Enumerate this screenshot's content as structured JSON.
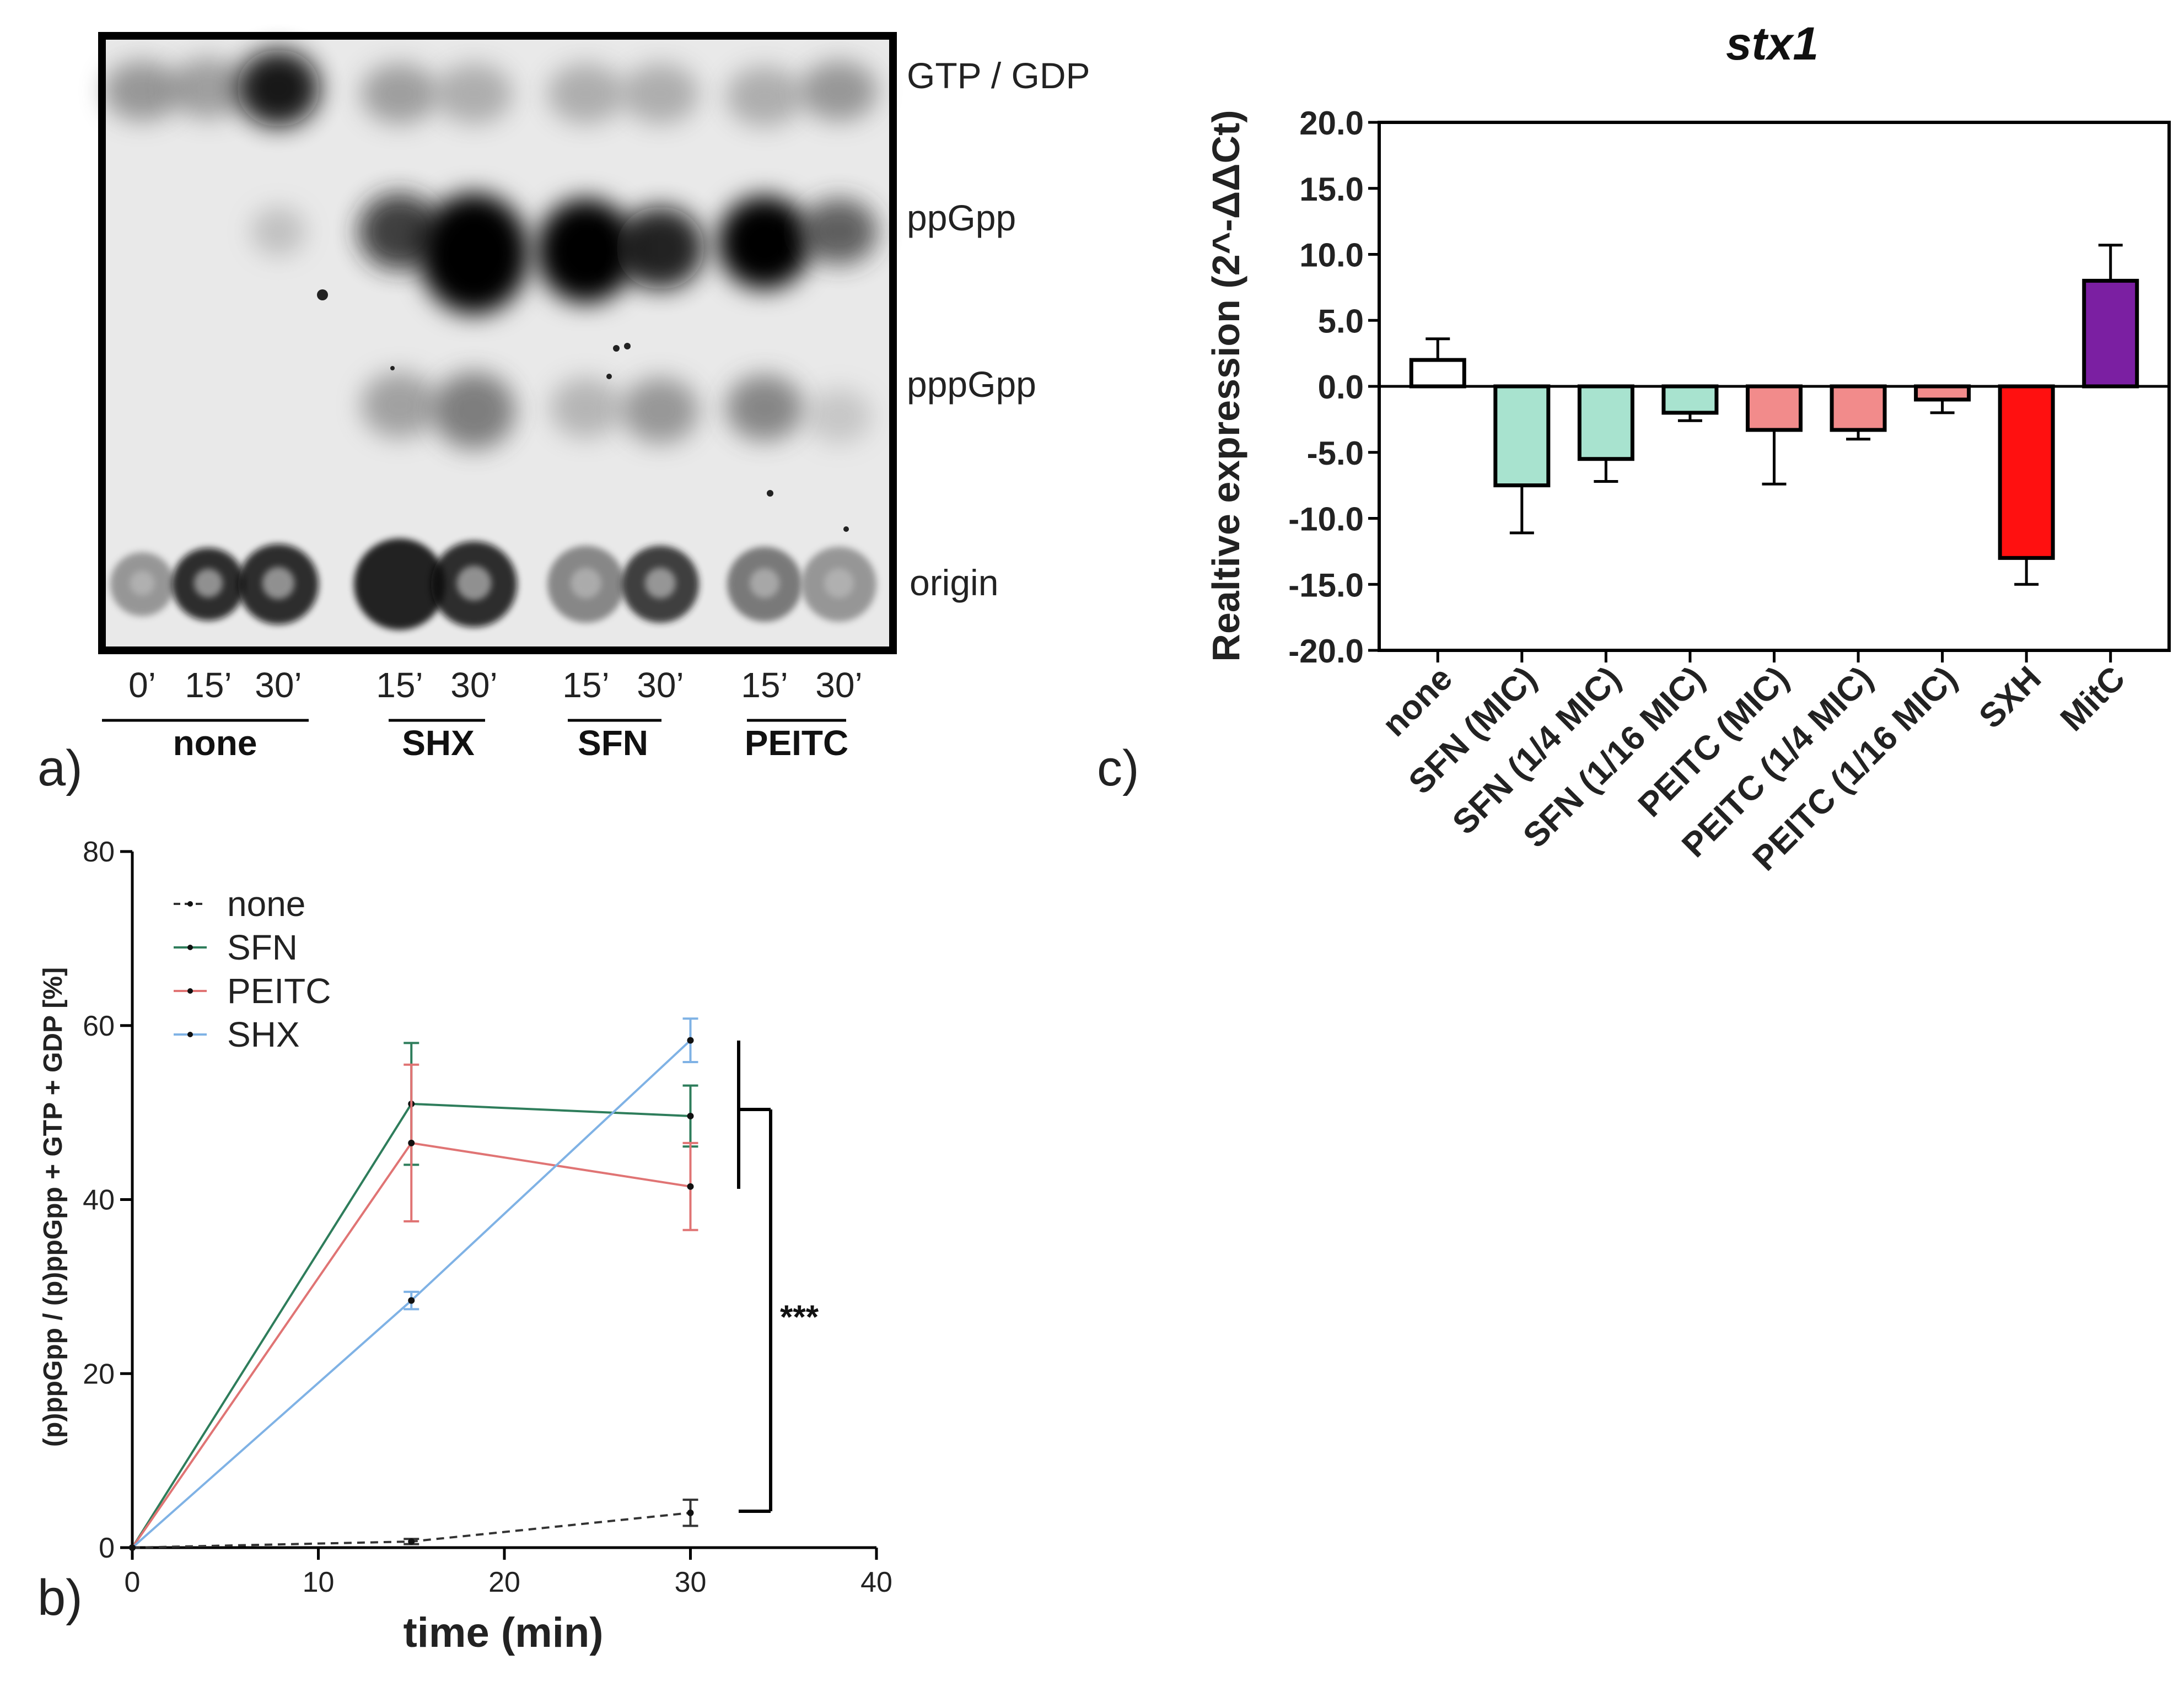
{
  "panels": {
    "a": {
      "label": "a)",
      "band_labels": [
        "GTP / GDP",
        "ppGpp",
        "pppGpp",
        "origin"
      ],
      "lanes": [
        "0’",
        "15’",
        "30’",
        "15’",
        "30’",
        "15’",
        "30’",
        "15’",
        "30’"
      ],
      "groups": [
        "none",
        "SHX",
        "SFN",
        "PEITC"
      ]
    },
    "b": {
      "label": "b)"
    },
    "c": {
      "label": "c)"
    }
  },
  "chart_data": [
    {
      "id": "b",
      "type": "line",
      "title": "",
      "xlabel": "time (min)",
      "ylabel": "(p)ppGpp / (p)ppGpp + GTP + GDP [%]",
      "xlim": [
        0,
        40
      ],
      "ylim": [
        0,
        80
      ],
      "xticks": [
        "0",
        "10",
        "20",
        "30",
        "40"
      ],
      "yticks": [
        "0",
        "20",
        "40",
        "60",
        "80"
      ],
      "x": [
        0,
        15,
        30
      ],
      "series": [
        {
          "name": "none",
          "color": "#333333",
          "dashed": true,
          "values": [
            0,
            0.7,
            4.0
          ],
          "errors": [
            0,
            0.3,
            1.5
          ]
        },
        {
          "name": "SFN",
          "color": "#2e7d5b",
          "dashed": false,
          "values": [
            0,
            51.0,
            49.6
          ],
          "errors": [
            0,
            7.0,
            3.5
          ]
        },
        {
          "name": "PEITC",
          "color": "#e07474",
          "dashed": false,
          "values": [
            0,
            46.5,
            41.5
          ],
          "errors": [
            0,
            9.0,
            5.0
          ]
        },
        {
          "name": "SHX",
          "color": "#7fb2e5",
          "dashed": false,
          "values": [
            0,
            28.4,
            58.3
          ],
          "errors": [
            0,
            1.0,
            2.5
          ]
        }
      ],
      "annotation": "***"
    },
    {
      "id": "c",
      "type": "bar",
      "title": "stx1",
      "ylabel": "Realtive expression (2^-ΔΔCt)",
      "ylim": [
        -20,
        20
      ],
      "yticks": [
        "20.0",
        "15.0",
        "10.0",
        "5.0",
        "0.0",
        "-5.0",
        "-10.0",
        "-15.0",
        "-20.0"
      ],
      "categories": [
        "none",
        "SFN (MIC)",
        "SFN (1/4 MIC)",
        "SFN (1/16 MIC)",
        "PEITC (MIC)",
        "PEITC (1/4 MIC)",
        "PEITC (1/16 MIC)",
        "SXH",
        "MitC"
      ],
      "values": [
        2.0,
        -7.5,
        -5.5,
        -2.0,
        -3.3,
        -3.3,
        -1.0,
        -13.0,
        8.0
      ],
      "errors": [
        1.6,
        3.6,
        1.7,
        0.6,
        4.1,
        0.7,
        1.0,
        2.0,
        2.7
      ],
      "colors": [
        "#ffffff",
        "#a8e3cf",
        "#a8e3cf",
        "#a8e3cf",
        "#f28b8b",
        "#f28b8b",
        "#f28b8b",
        "#ff1010",
        "#7b1fa2"
      ]
    }
  ]
}
